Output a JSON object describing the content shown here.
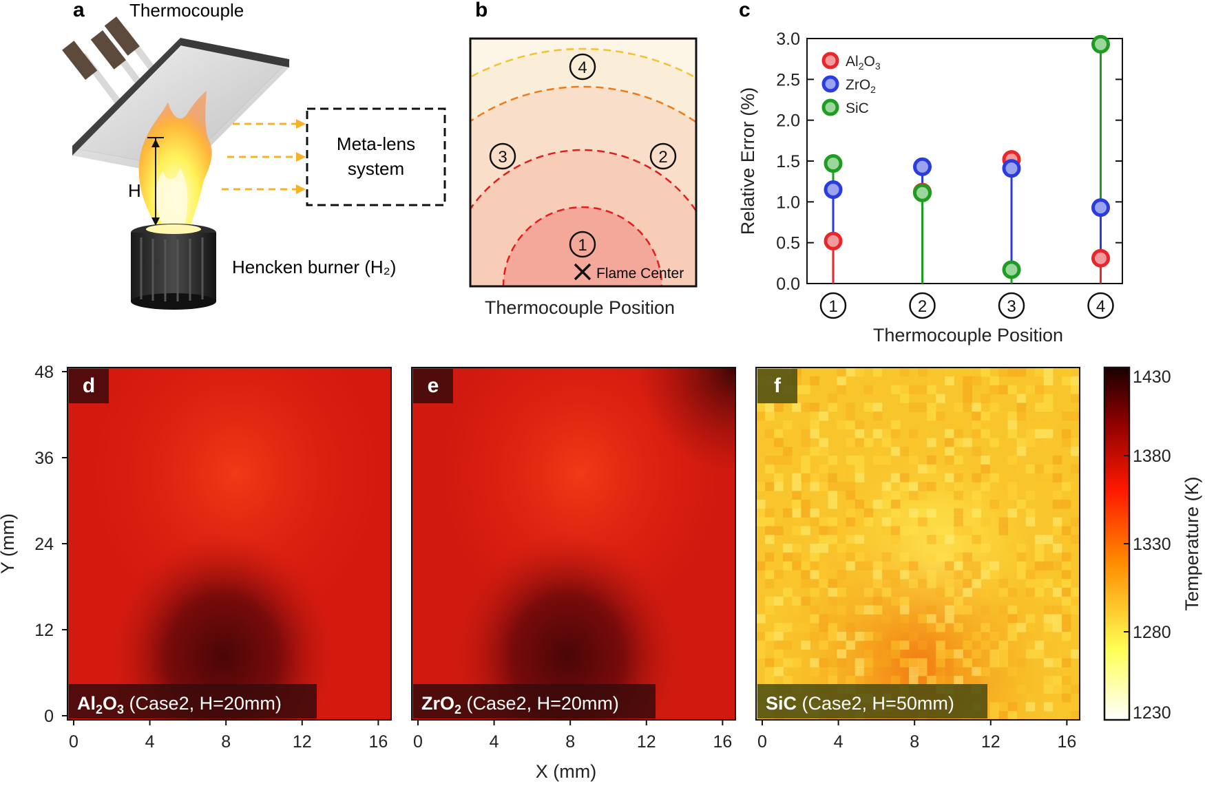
{
  "panel_a": {
    "letter": "a",
    "thermocouple_label": "Thermocouple",
    "height_label": "H",
    "burner_label": "Hencken burner (H₂)",
    "metalens_line1": "Meta-lens",
    "metalens_line2": "system"
  },
  "panel_b": {
    "letter": "b",
    "positions": [
      "4",
      "3",
      "2",
      "1"
    ],
    "flame_center_label": "Flame Center",
    "xlabel": "Thermocouple Position"
  },
  "chart_data": [
    {
      "panel": "c",
      "type": "scatter",
      "title": "",
      "ylabel": "Relative Error (%)",
      "xlabel": "Thermocouple Position",
      "categories": [
        "1",
        "2",
        "3",
        "4"
      ],
      "ylim": [
        0,
        3.0
      ],
      "yticks": [
        "0.0",
        "0.5",
        "1.0",
        "1.5",
        "2.0",
        "2.5",
        "3.0"
      ],
      "legend_position": "top-left",
      "series": [
        {
          "name": "Al2O3",
          "legend_main": "Al",
          "legend_sub1": "2",
          "legend_mid": "O",
          "legend_sub2": "3",
          "color": "#e8262b",
          "fill": "#f29a9c",
          "values": [
            0.52,
            1.12,
            1.52,
            0.31
          ]
        },
        {
          "name": "ZrO2",
          "legend_main": "ZrO",
          "legend_sub1": "2",
          "color": "#2a3ce0",
          "fill": "#9aa3ee",
          "values": [
            1.15,
            1.43,
            1.41,
            0.93
          ]
        },
        {
          "name": "SiC",
          "legend_main": "SiC",
          "color": "#1f9d23",
          "fill": "#9bd69c",
          "values": [
            1.47,
            1.11,
            0.17,
            2.93
          ]
        }
      ]
    },
    {
      "panel": "d",
      "type": "heatmap",
      "title_main": "Al",
      "title_sub1": "2",
      "title_mid": "O",
      "title_sub2": "3",
      "title_rest": " (Case2, H=20mm)",
      "xlabel": "X (mm)",
      "ylabel": "Y (mm)",
      "xticks": [
        "0",
        "4",
        "8",
        "12",
        "16"
      ],
      "yticks": [
        "0",
        "12",
        "24",
        "36",
        "48"
      ]
    },
    {
      "panel": "e",
      "type": "heatmap",
      "title_main": "ZrO",
      "title_sub1": "2",
      "title_rest": " (Case2, H=20mm)",
      "xticks": [
        "0",
        "4",
        "8",
        "12",
        "16"
      ]
    },
    {
      "panel": "f",
      "type": "heatmap",
      "title_main": "SiC",
      "title_rest": " (Case2, H=50mm)",
      "xticks": [
        "0",
        "4",
        "8",
        "12",
        "16"
      ]
    }
  ],
  "colorbar": {
    "label": "Temperature (K)",
    "ticks": [
      "1430",
      "1380",
      "1330",
      "1280",
      "1230"
    ],
    "range": [
      1230,
      1430
    ]
  },
  "colors": {
    "al2o3": "#e8262b",
    "zro2": "#2a3ce0",
    "sic": "#1f9d23",
    "flame_arrow": "#f5b324"
  }
}
